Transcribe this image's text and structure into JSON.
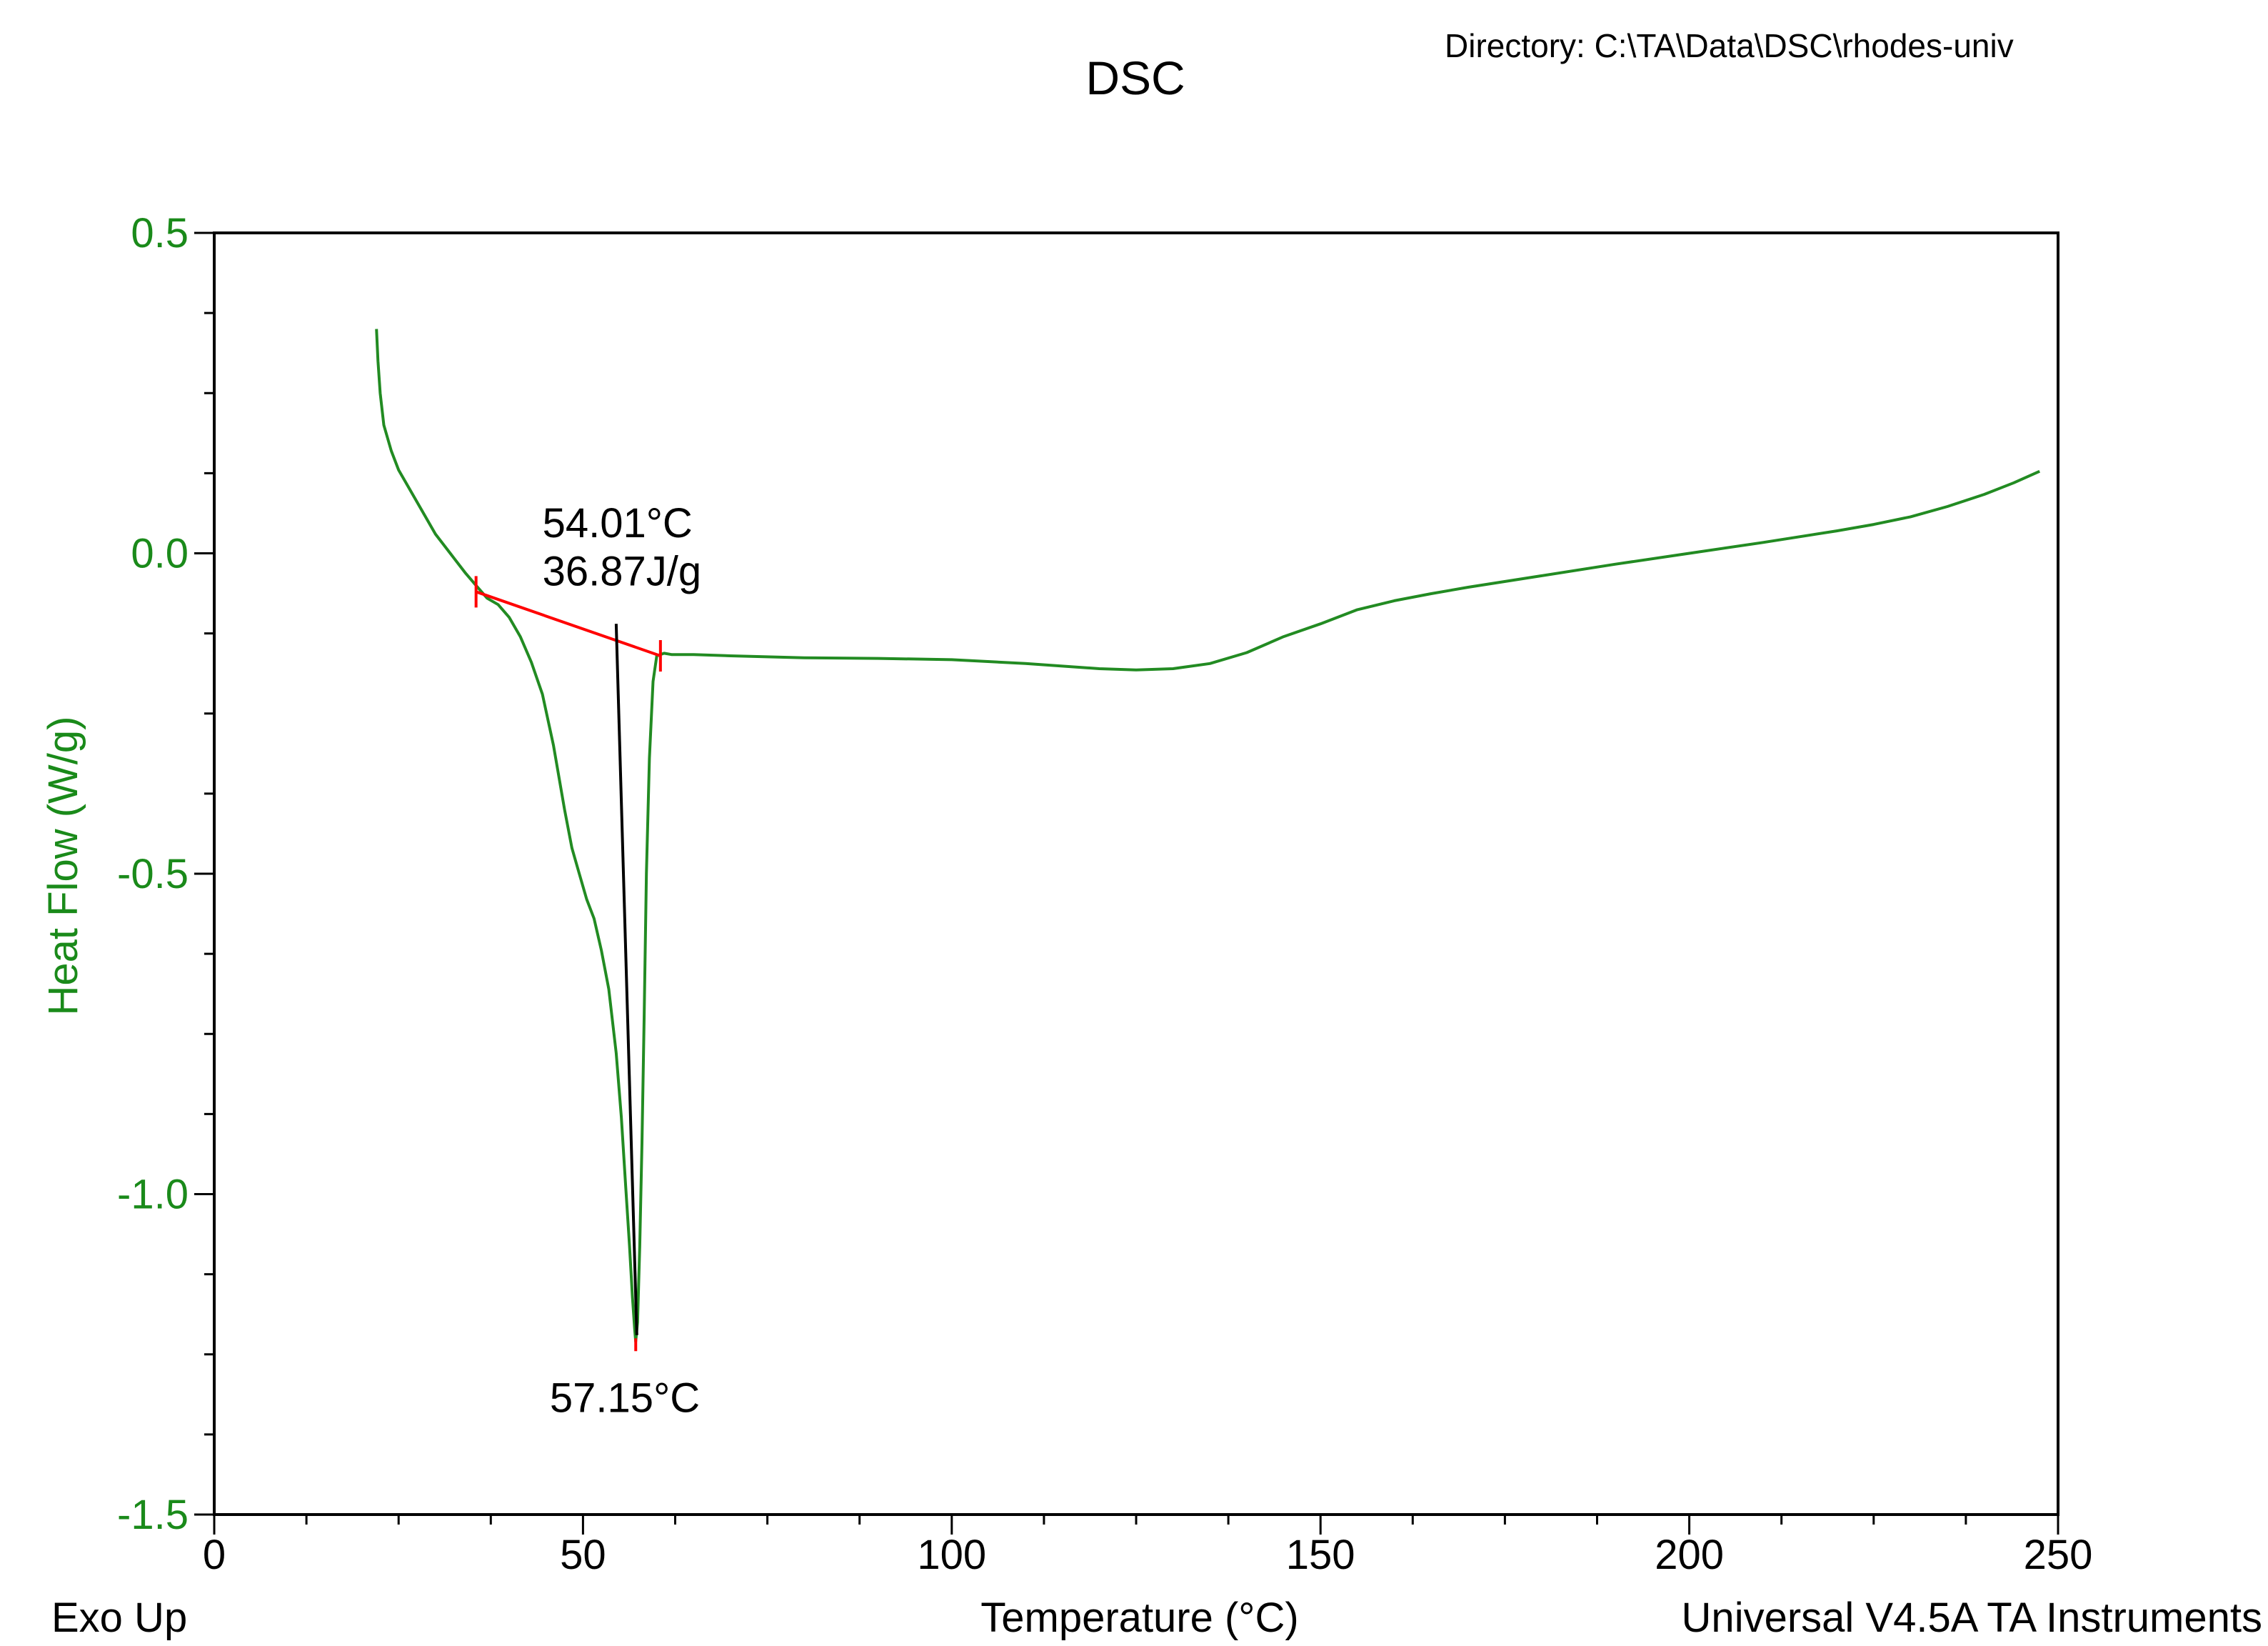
{
  "directory": "Directory: C:\\TA\\Data\\DSC\\rhodes-univ",
  "footer": {
    "left": "Exo Up",
    "right": "Universal V4.5A TA Instruments"
  },
  "colors": {
    "curve": "#228B22",
    "axis_text": "#1a8a1a",
    "baseline": "#ff0000",
    "onset_line": "#000000",
    "frame": "#000000"
  },
  "chart_data": {
    "type": "line",
    "title": "DSC",
    "xlabel": "Temperature (°C)",
    "ylabel": "Heat Flow (W/g)",
    "xlim": [
      0,
      250
    ],
    "ylim": [
      -1.5,
      0.5
    ],
    "xticks": [
      0,
      50,
      100,
      150,
      200,
      250
    ],
    "xtick_labels": [
      "0",
      "50",
      "100",
      "150",
      "200",
      "250"
    ],
    "yticks": [
      0.5,
      0.0,
      -0.5,
      -1.0,
      -1.5
    ],
    "ytick_labels": [
      "0.5",
      "0.0",
      "-0.5",
      "-1.0",
      "-1.5"
    ],
    "grid": false,
    "series": [
      {
        "x": [
          22.0,
          22.2,
          22.5,
          23,
          24,
          25,
          26,
          28,
          30,
          32,
          34,
          35.5,
          37,
          38.5,
          40,
          41.5,
          43,
          44.5,
          46,
          47.5,
          48.5,
          49.5,
          50.5,
          51.5,
          52.5,
          53.5,
          54.5,
          55.2,
          55.8,
          56.3,
          56.7,
          57.0,
          57.15,
          57.4,
          57.7,
          58.0,
          58.3,
          58.6,
          59.0,
          59.5,
          60,
          61,
          62,
          65,
          70,
          80,
          90,
          100,
          110,
          120,
          125,
          130,
          135,
          140,
          145,
          150,
          155,
          160,
          165,
          170,
          180,
          190,
          200,
          210,
          220,
          225,
          230,
          235,
          240,
          244,
          247.5
        ],
        "y": [
          0.35,
          0.3,
          0.25,
          0.2,
          0.16,
          0.13,
          0.11,
          0.07,
          0.03,
          0.0,
          -0.03,
          -0.05,
          -0.07,
          -0.08,
          -0.1,
          -0.13,
          -0.17,
          -0.22,
          -0.3,
          -0.4,
          -0.46,
          -0.5,
          -0.54,
          -0.57,
          -0.62,
          -0.68,
          -0.78,
          -0.88,
          -0.99,
          -1.08,
          -1.16,
          -1.21,
          -1.23,
          -1.2,
          -1.08,
          -0.92,
          -0.72,
          -0.5,
          -0.32,
          -0.2,
          -0.16,
          -0.156,
          -0.158,
          -0.158,
          -0.16,
          -0.163,
          -0.164,
          -0.166,
          -0.172,
          -0.18,
          -0.182,
          -0.18,
          -0.172,
          -0.155,
          -0.13,
          -0.11,
          -0.088,
          -0.074,
          -0.063,
          -0.053,
          -0.035,
          -0.017,
          0.0,
          0.017,
          0.035,
          0.045,
          0.057,
          0.073,
          0.092,
          0.11,
          0.128
        ]
      }
    ],
    "baseline": {
      "x": [
        35.5,
        60.5
      ],
      "y": [
        -0.06,
        -0.16
      ]
    },
    "onset_tangent": {
      "x": [
        54.5,
        57.3
      ],
      "y": [
        -0.11,
        -1.22
      ]
    },
    "peak_marker": {
      "x": 57.15,
      "y": [
        -1.225,
        -1.245
      ]
    },
    "annotations": [
      {
        "text": "54.01°C",
        "x": 44.5,
        "y": 0.025
      },
      {
        "text": "36.87J/g",
        "x": 44.5,
        "y": -0.05
      },
      {
        "text": "57.15°C",
        "x": 45.5,
        "y": -1.34
      }
    ]
  }
}
